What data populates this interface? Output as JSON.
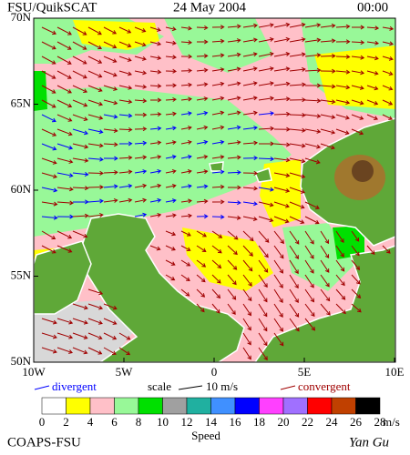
{
  "header": {
    "source": "FSU/QuikSCAT",
    "date": "24 May 2004",
    "time": "00:00"
  },
  "map": {
    "lat_labels": [
      "70N",
      "65N",
      "60N",
      "55N",
      "50N"
    ],
    "lon_labels": [
      "10W",
      "5W",
      "0",
      "5E",
      "10E"
    ]
  },
  "legend": {
    "divergent": "divergent",
    "scale": "scale",
    "scale_value": "10 m/s",
    "convergent": "convergent",
    "divergent_color": "#0000ff",
    "convergent_color": "#a00000"
  },
  "colorbar": {
    "ticks": [
      0,
      2,
      4,
      6,
      8,
      10,
      12,
      14,
      16,
      18,
      20,
      22,
      24,
      26,
      28
    ],
    "colors": [
      "#ffffff",
      "#ffff00",
      "#ffc0c8",
      "#98f898",
      "#00e000",
      "#a0a0a0",
      "#20b0a0",
      "#4090ff",
      "#0000ff",
      "#ff40ff",
      "#a070ff",
      "#ff0000",
      "#c04000",
      "#000000"
    ],
    "unit": "m/s",
    "label": "Speed"
  },
  "footer": {
    "left": "COAPS-FSU",
    "right": "Yan Gu"
  }
}
